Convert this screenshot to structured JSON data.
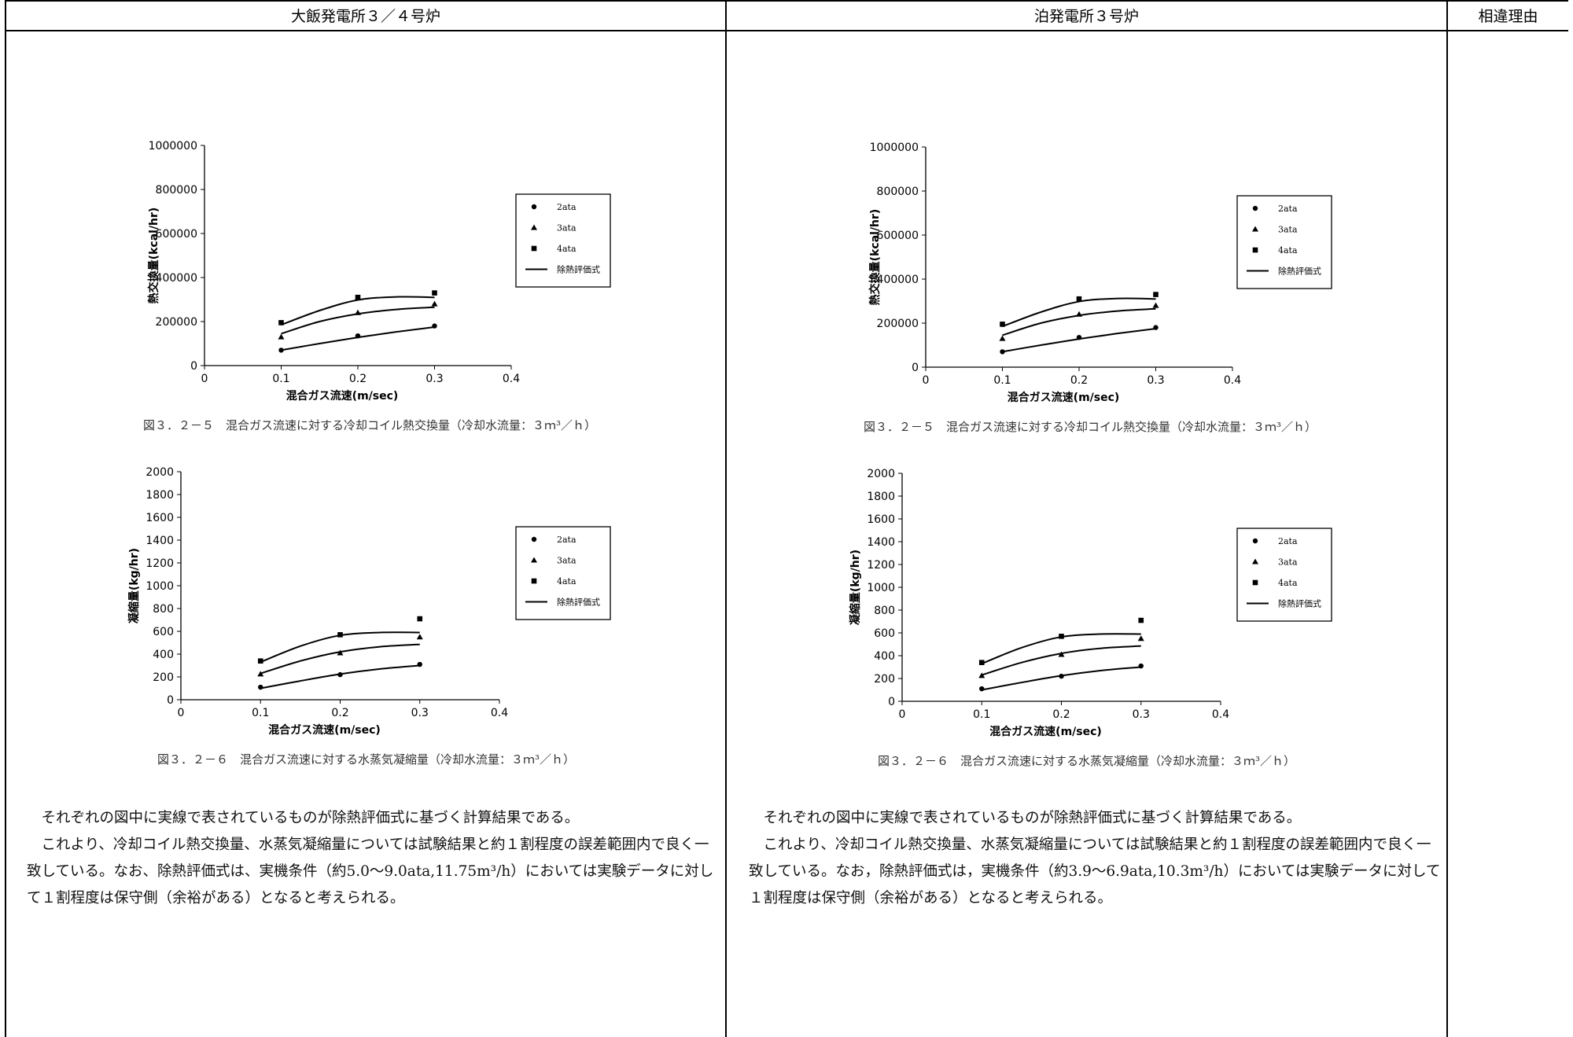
{
  "table": {
    "headers": [
      "大飯発電所３／４号炉",
      "泊発電所３号炉",
      "相違理由"
    ]
  },
  "left": {
    "charts": [
      {
        "title": "",
        "ylabel": "熱交換量(kcal/hr)",
        "xlabel": "混合ガス流速(m/sec)",
        "caption": "図３．２－５　混合ガス流速に対する冷却コイル熱交換量（冷却水流量：３ｍ³／ｈ）",
        "xticks": [
          "0",
          "0.1",
          "0.2",
          "0.3",
          "0.4"
        ],
        "yticks": [
          "0",
          "200000",
          "400000",
          "600000",
          "800000",
          "1000000"
        ],
        "legend": [
          "2ata",
          "3ata",
          "4ata",
          "除熱評価式"
        ]
      },
      {
        "title": "",
        "ylabel": "凝縮量(kg/hr)",
        "xlabel": "混合ガス流速(m/sec)",
        "caption": "図３．２－６　混合ガス流速に対する水蒸気凝縮量（冷却水流量：３ｍ³／ｈ）",
        "xticks": [
          "0",
          "0.1",
          "0.2",
          "0.3",
          "0.4"
        ],
        "yticks": [
          "0",
          "200",
          "400",
          "600",
          "800",
          "1000",
          "1200",
          "1400",
          "1600",
          "1800",
          "2000"
        ],
        "legend": [
          "2ata",
          "3ata",
          "4ata",
          "除熱評価式"
        ]
      }
    ],
    "paragraphs": [
      "それぞれの図中に実線で表されているものが除熱評価式に基づく計算結果である。",
      "これより、冷却コイル熱交換量、水蒸気凝縮量については試験結果と約１割程度の誤差範囲内で良く一致している。なお、除熱評価式は、実機条件（約5.0～9.0ata,11.75m³/h）においては実験データに対して１割程度は保守側（余裕がある）となると考えられる。"
    ]
  },
  "right": {
    "charts": [
      {
        "title": "",
        "ylabel": "熱交換量(kcal/hr)",
        "xlabel": "混合ガス流速(m/sec)",
        "caption": "図３．２－５　混合ガス流速に対する冷却コイル熱交換量（冷却水流量：３ｍ³／ｈ）",
        "xticks": [
          "0",
          "0.1",
          "0.2",
          "0.3",
          "0.4"
        ],
        "yticks": [
          "0",
          "200000",
          "400000",
          "600000",
          "800000",
          "1000000"
        ],
        "legend": [
          "2ata",
          "3ata",
          "4ata",
          "除熱評価式"
        ]
      },
      {
        "title": "",
        "ylabel": "凝縮量(kg/hr)",
        "xlabel": "混合ガス流速(m/sec)",
        "caption": "図３．２－６　混合ガス流速に対する水蒸気凝縮量（冷却水流量：３ｍ³／ｈ）",
        "xticks": [
          "0",
          "0.1",
          "0.2",
          "0.3",
          "0.4"
        ],
        "yticks": [
          "0",
          "200",
          "400",
          "600",
          "800",
          "1000",
          "1200",
          "1400",
          "1600",
          "1800",
          "2000"
        ],
        "legend": [
          "2ata",
          "3ata",
          "4ata",
          "除熱評価式"
        ]
      }
    ],
    "paragraphs": [
      "それぞれの図中に実線で表されているものが除熱評価式に基づく計算結果である。",
      "これより、冷却コイル熱交換量、水蒸気凝縮量については試験結果と約１割程度の誤差範囲内で良く一致している。なお，除熱評価式は，実機条件（約3.9～6.9ata,10.3m³/h）においては実験データに対して１割程度は保守側（余裕がある）となると考えられる。"
    ]
  },
  "chart_data": [
    {
      "type": "scatter",
      "xlim": [
        0,
        0.4
      ],
      "ylim": [
        0,
        1000000
      ],
      "legend_position": "right",
      "series": [
        {
          "name": "2ata",
          "marker": "circle",
          "x": [
            0.1,
            0.2,
            0.3
          ],
          "y": [
            70000,
            135000,
            180000
          ]
        },
        {
          "name": "3ata",
          "marker": "triangle",
          "x": [
            0.1,
            0.2,
            0.3
          ],
          "y": [
            130000,
            240000,
            280000
          ]
        },
        {
          "name": "4ata",
          "marker": "square",
          "x": [
            0.1,
            0.2,
            0.3
          ],
          "y": [
            195000,
            310000,
            330000
          ]
        }
      ],
      "curves": [
        {
          "name": "除熱評価式",
          "x": [
            0.1,
            0.15,
            0.2,
            0.25,
            0.3
          ],
          "y": [
            70000,
            100000,
            128000,
            153000,
            175000
          ]
        },
        {
          "name": "除熱評価式",
          "x": [
            0.1,
            0.15,
            0.2,
            0.25,
            0.3
          ],
          "y": [
            145000,
            200000,
            235000,
            255000,
            265000
          ]
        },
        {
          "name": "除熱評価式",
          "x": [
            0.1,
            0.15,
            0.2,
            0.25,
            0.3
          ],
          "y": [
            185000,
            250000,
            298000,
            312000,
            310000
          ]
        }
      ]
    },
    {
      "type": "scatter",
      "xlim": [
        0,
        0.4
      ],
      "ylim": [
        0,
        2000
      ],
      "legend_position": "right",
      "series": [
        {
          "name": "2ata",
          "marker": "circle",
          "x": [
            0.1,
            0.2,
            0.3
          ],
          "y": [
            110,
            220,
            310
          ]
        },
        {
          "name": "3ata",
          "marker": "triangle",
          "x": [
            0.1,
            0.2,
            0.3
          ],
          "y": [
            225,
            410,
            550
          ]
        },
        {
          "name": "4ata",
          "marker": "square",
          "x": [
            0.1,
            0.2,
            0.3
          ],
          "y": [
            340,
            570,
            710
          ]
        }
      ],
      "curves": [
        {
          "name": "除熱評価式",
          "x": [
            0.1,
            0.15,
            0.2,
            0.25,
            0.3
          ],
          "y": [
            100,
            165,
            225,
            270,
            300
          ]
        },
        {
          "name": "除熱評価式",
          "x": [
            0.1,
            0.15,
            0.2,
            0.25,
            0.3
          ],
          "y": [
            230,
            340,
            420,
            465,
            485
          ]
        },
        {
          "name": "除熱評価式",
          "x": [
            0.1,
            0.15,
            0.2,
            0.25,
            0.3
          ],
          "y": [
            330,
            470,
            565,
            590,
            590
          ]
        }
      ]
    }
  ]
}
